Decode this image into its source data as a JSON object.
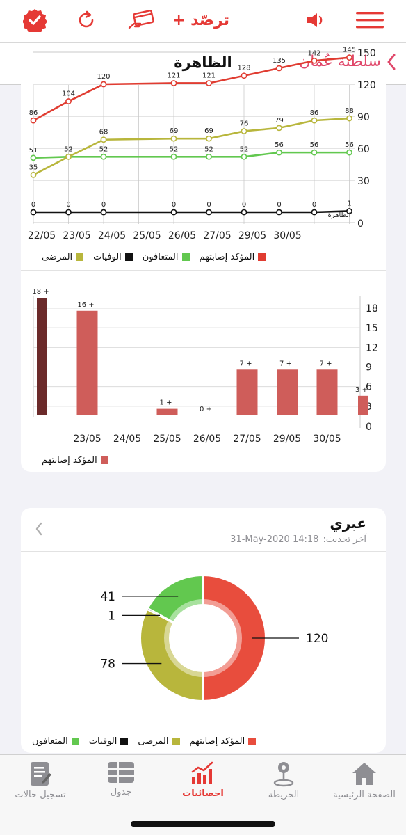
{
  "header": {
    "brand": "ترصّد +"
  },
  "nav": {
    "title": "الظاهرة",
    "back_label": "سلطنة عُمان"
  },
  "colors": {
    "confirmed": "#e03c31",
    "recovered": "#62c84f",
    "deaths": "#111111",
    "active": "#b8b63c",
    "bar": "#cf5d5a",
    "bar_dark": "#6b2a2a",
    "accent": "#e53935"
  },
  "line_legend": [
    "المؤكد إصابتهم",
    "المتعافون",
    "الوفيات",
    "المرضى"
  ],
  "bar_legend": [
    "المؤكد إصابتهم"
  ],
  "pie_card": {
    "title": "عبري",
    "updated_label": "آخر تحديث:",
    "updated_value": "31-May-2020 14:18",
    "legend": [
      "المؤكد إصابتهم",
      "المرضى",
      "الوفيات",
      "المتعافون"
    ]
  },
  "tabs": [
    {
      "label": "تسجيل حالات",
      "icon": "form-icon"
    },
    {
      "label": "جدول",
      "icon": "table-icon"
    },
    {
      "label": "احصائيات",
      "icon": "chart-icon",
      "active": true
    },
    {
      "label": "الخريطة",
      "icon": "map-pin-icon"
    },
    {
      "label": "الصفحة الرئيسية",
      "icon": "home-icon"
    }
  ],
  "chart_data": [
    {
      "type": "line",
      "x": [
        "22/05",
        "23/05",
        "24/05",
        "25/05",
        "26/05",
        "27/05",
        "29/05",
        "30/05"
      ],
      "y_ticks": [
        "0",
        "30",
        "60",
        "90",
        "120",
        "150"
      ],
      "ylim": [
        0,
        150
      ],
      "end_label": "الظاهرة",
      "series": [
        {
          "name": "المؤكد إصابتهم",
          "color": "#e03c31",
          "points": [
            [
              0,
              86
            ],
            [
              1,
              104
            ],
            [
              2,
              120
            ],
            [
              4,
              121
            ],
            [
              5,
              121
            ],
            [
              6,
              128
            ],
            [
              7,
              135
            ],
            [
              8,
              142
            ],
            [
              9,
              145
            ]
          ]
        },
        {
          "name": "المتعافون",
          "color": "#62c84f",
          "points": [
            [
              0,
              51
            ],
            [
              1,
              52
            ],
            [
              2,
              52
            ],
            [
              4,
              52
            ],
            [
              5,
              52
            ],
            [
              6,
              52
            ],
            [
              7,
              56
            ],
            [
              8,
              56
            ],
            [
              9,
              56
            ]
          ]
        },
        {
          "name": "الوفيات",
          "color": "#111111",
          "points": [
            [
              0,
              0
            ],
            [
              1,
              0
            ],
            [
              2,
              0
            ],
            [
              4,
              0
            ],
            [
              5,
              0
            ],
            [
              6,
              0
            ],
            [
              7,
              0
            ],
            [
              8,
              0
            ],
            [
              9,
              1
            ]
          ]
        },
        {
          "name": "المرضى",
          "color": "#b8b63c",
          "points": [
            [
              0,
              35
            ],
            [
              1,
              52
            ],
            [
              2,
              68
            ],
            [
              4,
              69
            ],
            [
              5,
              69
            ],
            [
              6,
              76
            ],
            [
              7,
              79
            ],
            [
              8,
              86
            ],
            [
              9,
              88
            ]
          ]
        }
      ]
    },
    {
      "type": "bar",
      "categories": [
        "",
        "23/05",
        "24/05",
        "25/05",
        "26/05",
        "27/05",
        "29/05",
        "30/05",
        ""
      ],
      "values": [
        18,
        16,
        null,
        1,
        0,
        7,
        7,
        7,
        3
      ],
      "labels": [
        "18 +",
        "16 +",
        "",
        "1 +",
        "0 +",
        "7 +",
        "7 +",
        "7 +",
        "3 +"
      ],
      "y_ticks": [
        "0",
        "3",
        "6",
        "9",
        "12",
        "15",
        "18"
      ],
      "ylim": [
        0,
        18
      ],
      "series": [
        {
          "name": "المؤكد إصابتهم"
        }
      ]
    },
    {
      "type": "pie",
      "slices": [
        {
          "name": "المؤكد إصابتهم",
          "value": 120,
          "color": "#e84d3d"
        },
        {
          "name": "المرضى",
          "value": 78,
          "color": "#b8b63c"
        },
        {
          "name": "الوفيات",
          "value": 1,
          "color": "#111111"
        },
        {
          "name": "المتعافون",
          "value": 41,
          "color": "#62c84f"
        }
      ]
    }
  ]
}
